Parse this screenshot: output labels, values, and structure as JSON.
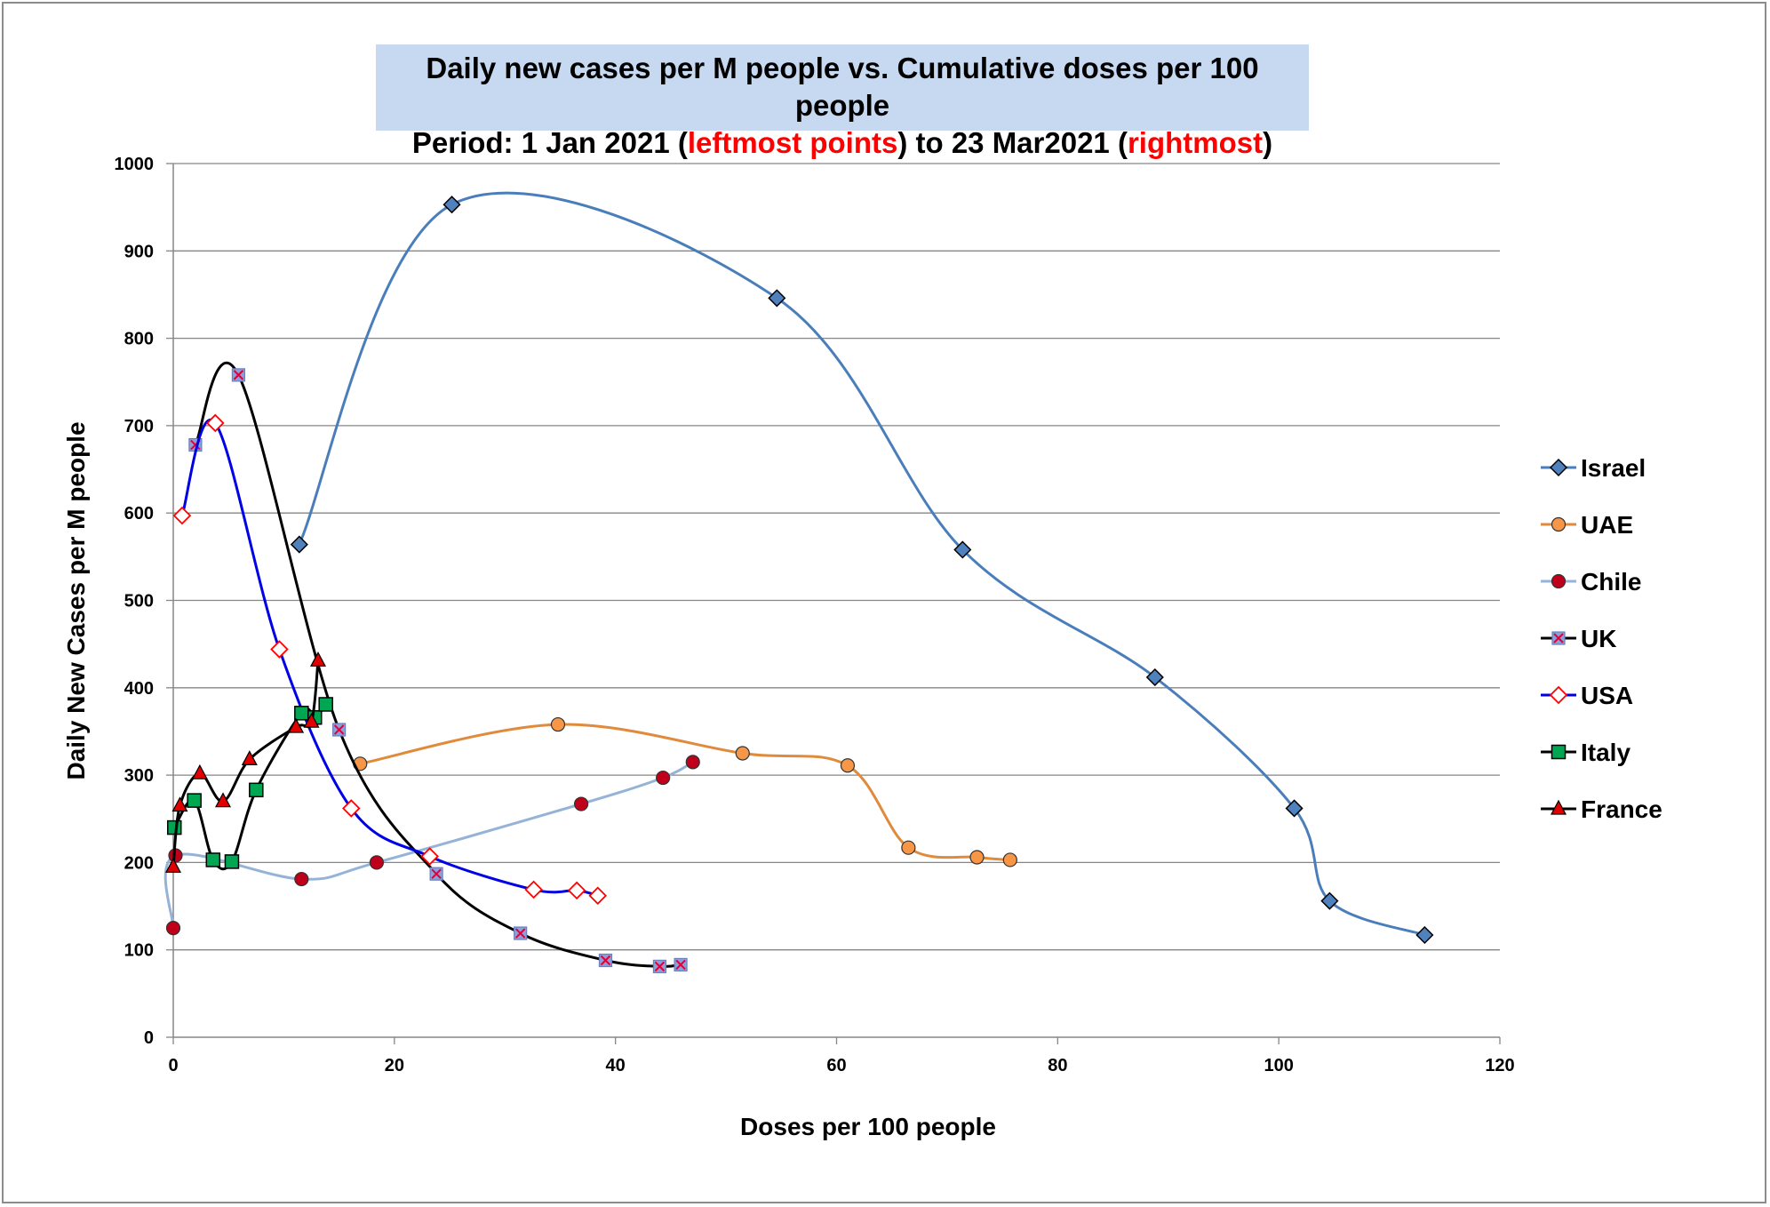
{
  "title": {
    "line1": "Daily new cases per M people vs. Cumulative doses per 100 people",
    "line2_prefix": "Period:  1 Jan 2021 (",
    "line2_red1": "leftmost points",
    "line2_mid": ") to 23 Mar2021 (",
    "line2_red2": "rightmost",
    "line2_suffix": ")"
  },
  "chart_data": {
    "type": "scatter",
    "xlabel": "Doses per 100 people",
    "ylabel": "Daily New Cases per M people",
    "xlim": [
      0,
      120
    ],
    "ylim": [
      0,
      1000
    ],
    "xticks": [
      0,
      20,
      40,
      60,
      80,
      100,
      120
    ],
    "yticks": [
      0,
      100,
      200,
      300,
      400,
      500,
      600,
      700,
      800,
      900,
      1000
    ],
    "grid": "horizontal",
    "legend_position": "right",
    "series": [
      {
        "name": "Israel",
        "color": "#4a7ebb",
        "marker": "diamond",
        "marker_fill": "#4f81bd",
        "x": [
          11.4,
          25.2,
          54.6,
          71.4,
          88.8,
          101.4,
          104.6,
          113.2
        ],
        "y": [
          564,
          953,
          846,
          558,
          412,
          262,
          156,
          117
        ]
      },
      {
        "name": "UAE",
        "color": "#e08a3c",
        "marker": "circle",
        "marker_fill": "#f79646",
        "x": [
          16.9,
          34.8,
          51.5,
          61.0,
          66.5,
          72.7,
          75.7
        ],
        "y": [
          313,
          358,
          325,
          311,
          217,
          206,
          203
        ]
      },
      {
        "name": "Chile",
        "color": "#95b3d7",
        "marker": "circle",
        "marker_fill": "#c0001a",
        "x": [
          0.0,
          0.2,
          11.6,
          18.4,
          36.9,
          44.3,
          47.0
        ],
        "y": [
          125,
          208,
          181,
          200,
          267,
          297,
          315
        ]
      },
      {
        "name": "UK",
        "color": "#000000",
        "marker": "square-x",
        "marker_fill": "#8aa0d8",
        "x": [
          2.0,
          5.9,
          15.0,
          23.8,
          31.4,
          39.1,
          44.0,
          45.9
        ],
        "y": [
          678,
          758,
          352,
          187,
          119,
          88,
          81,
          83
        ]
      },
      {
        "name": "USA",
        "color": "#0000e6",
        "marker": "diamond-open",
        "marker_fill": "#ffffff",
        "x": [
          0.8,
          3.8,
          9.6,
          16.1,
          23.2,
          32.6,
          36.5,
          38.4
        ],
        "y": [
          597,
          703,
          444,
          262,
          207,
          169,
          168,
          162
        ]
      },
      {
        "name": "Italy",
        "color": "#000000",
        "marker": "square",
        "marker_fill": "#00a651",
        "x": [
          0.1,
          1.9,
          3.6,
          5.3,
          7.5,
          11.6,
          12.8,
          13.8
        ],
        "y": [
          240,
          271,
          203,
          201,
          283,
          371,
          366,
          381
        ]
      },
      {
        "name": "France",
        "color": "#000000",
        "marker": "triangle",
        "marker_fill": "#e00000",
        "x": [
          0.0,
          0.6,
          2.4,
          4.5,
          6.9,
          11.1,
          12.5,
          13.1
        ],
        "y": [
          195,
          265,
          302,
          270,
          318,
          355,
          361,
          431
        ]
      }
    ]
  }
}
